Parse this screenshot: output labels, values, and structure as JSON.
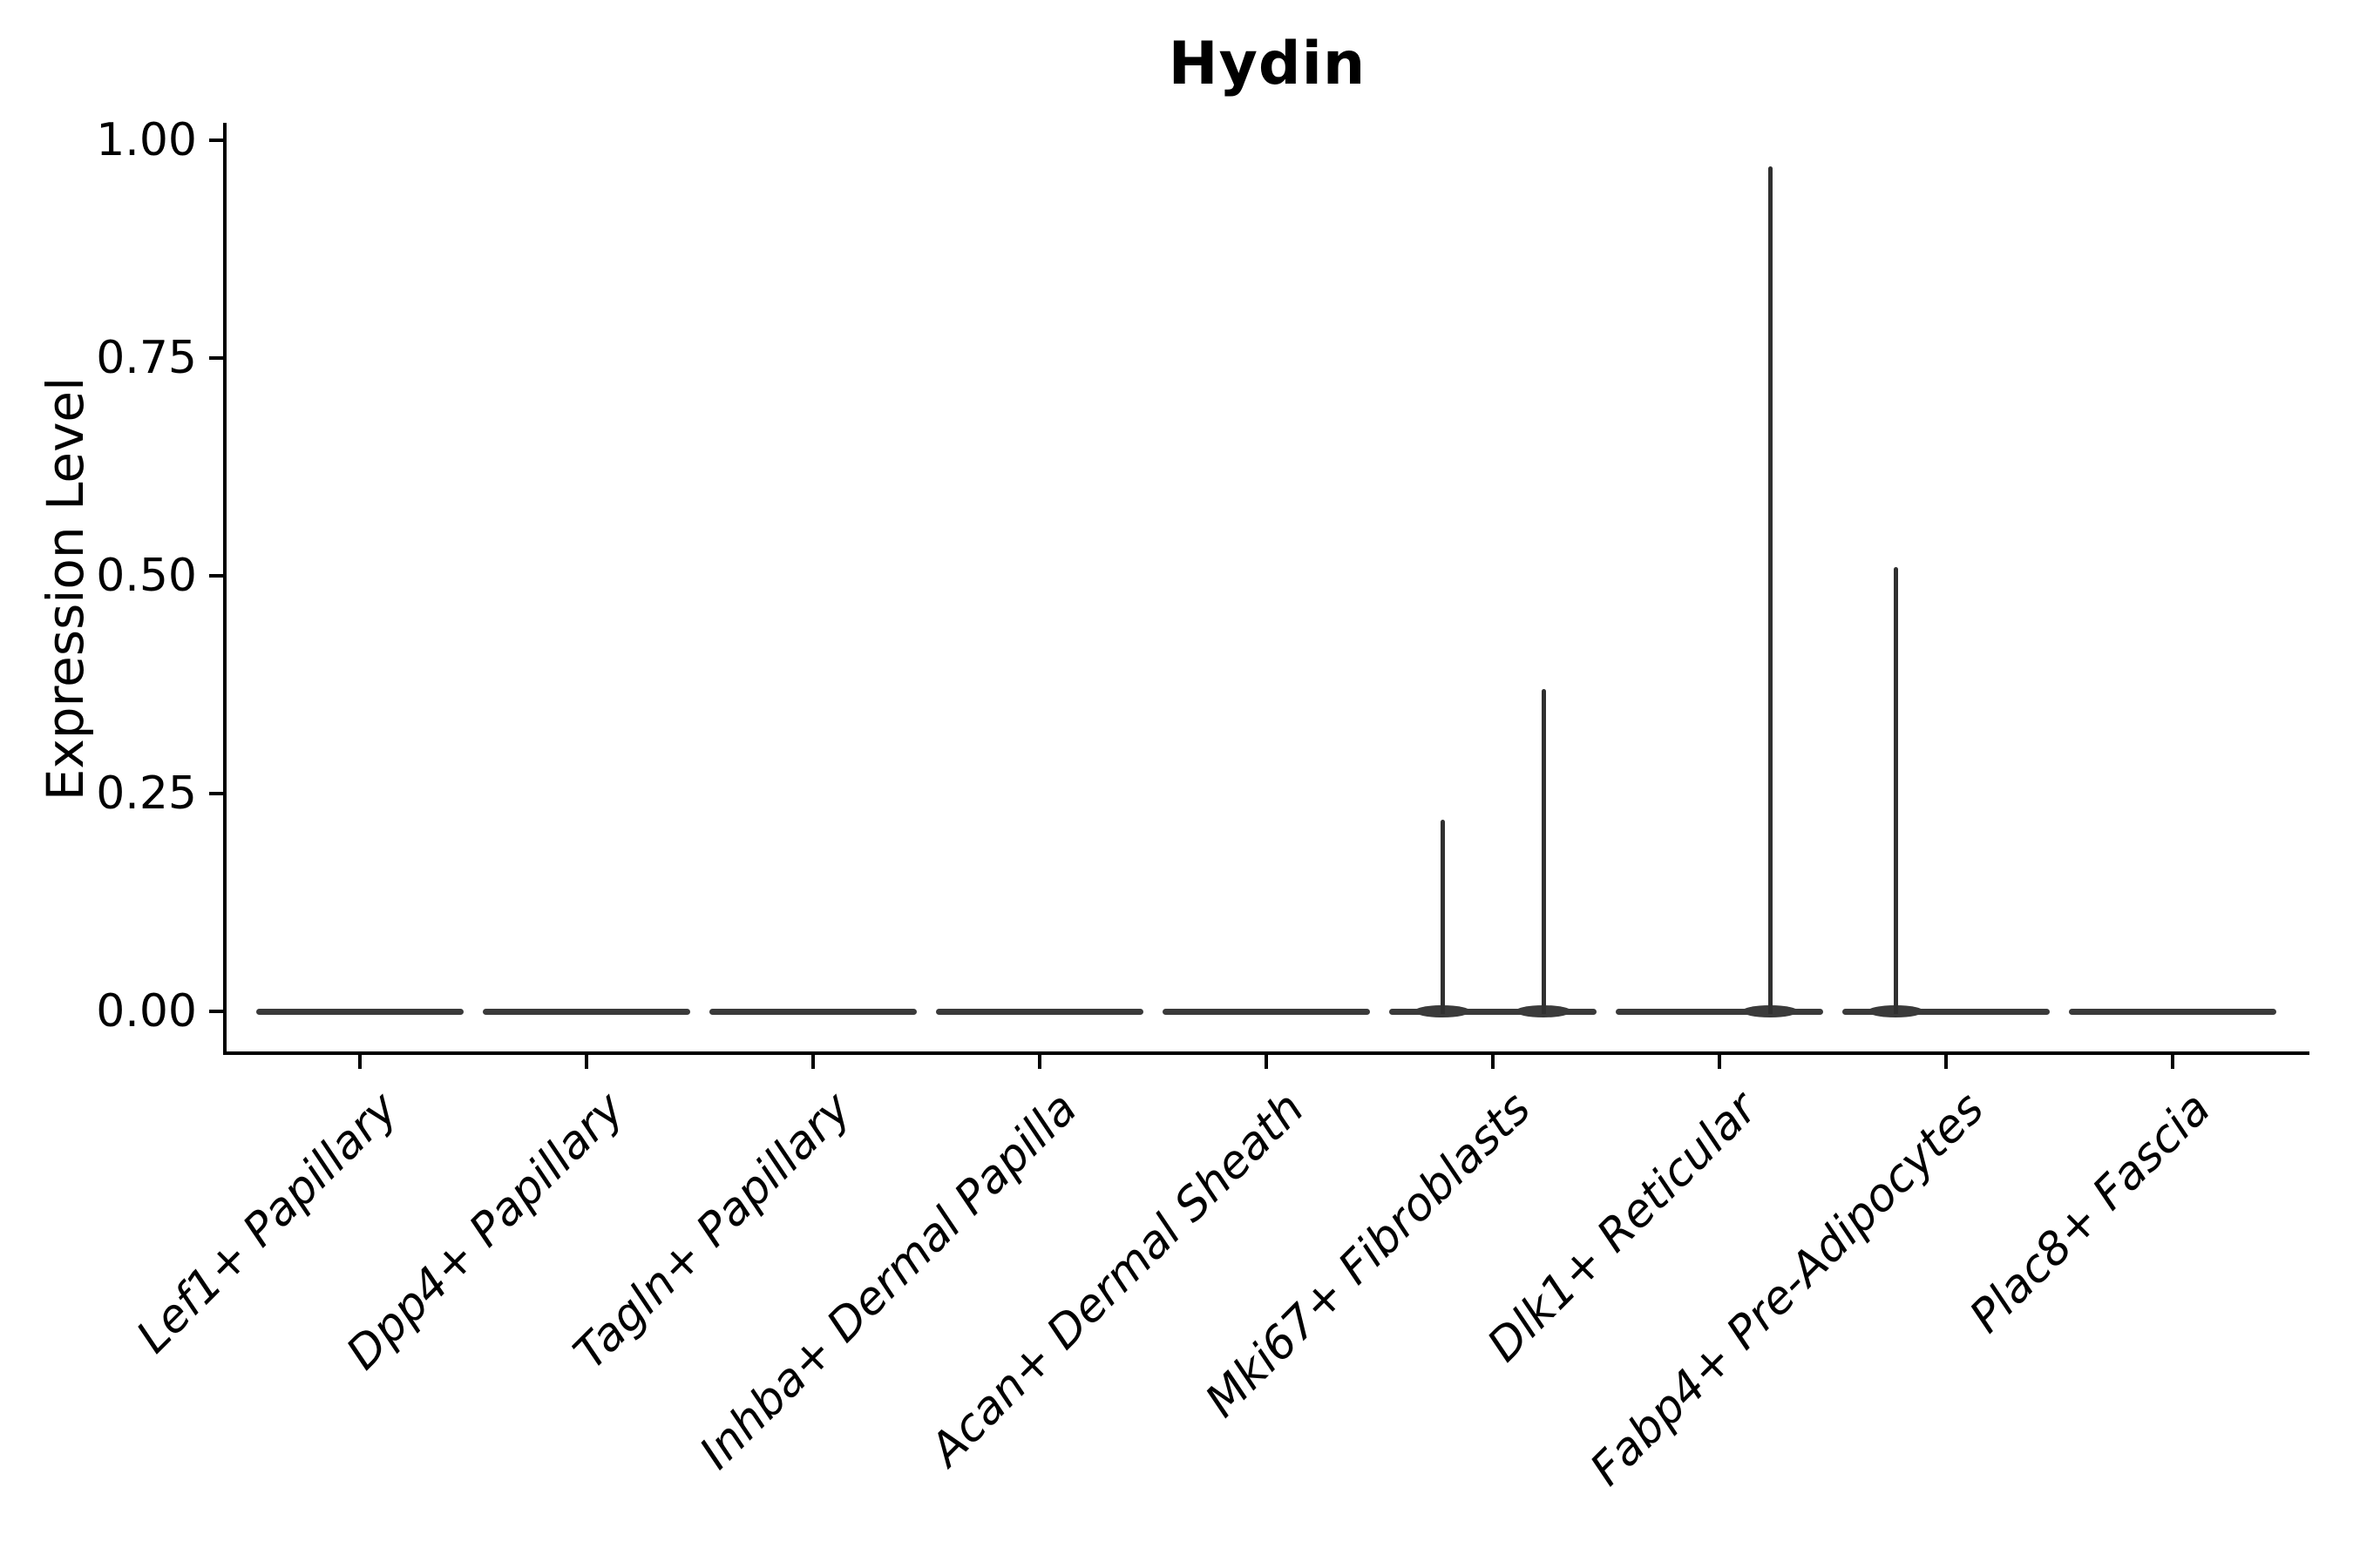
{
  "figure": {
    "background_color": "#ffffff"
  },
  "chart_data": {
    "type": "violin",
    "title": "Hydin",
    "xlabel": "",
    "ylabel": "Expression Level",
    "ylim": [
      0,
      1.02
    ],
    "grid": false,
    "legend_position": "none",
    "yticks": [
      {
        "value": 1.0,
        "label": "1.00"
      },
      {
        "value": 0.75,
        "label": "0.75"
      },
      {
        "value": 0.5,
        "label": "0.50"
      },
      {
        "value": 0.25,
        "label": "0.25"
      },
      {
        "value": 0.0,
        "label": "0.00"
      }
    ],
    "categories": [
      "Lef1+ Papillary",
      "Dpp4+ Papillary",
      "Tagln+ Papillary",
      "Inhba+ Dermal Papilla",
      "Acan+ Dermal Sheath",
      "Mki67+ Fibroblasts",
      "Dlk1+ Reticular",
      "Fabp4+ Pre-Adipocytes",
      "Plac8+ Fascia"
    ],
    "series": [
      {
        "name": "left-subviolin",
        "peak_expression": [
          0,
          0,
          0,
          0,
          0,
          0.22,
          0,
          0.51,
          0
        ]
      },
      {
        "name": "right-subviolin",
        "peak_expression": [
          0,
          0,
          0,
          0,
          0,
          0.37,
          0.97,
          0,
          0
        ]
      }
    ],
    "colors": {
      "violin": "#3a3a3a",
      "spike": "#303030",
      "axis": "#000000",
      "text": "#000000"
    }
  }
}
